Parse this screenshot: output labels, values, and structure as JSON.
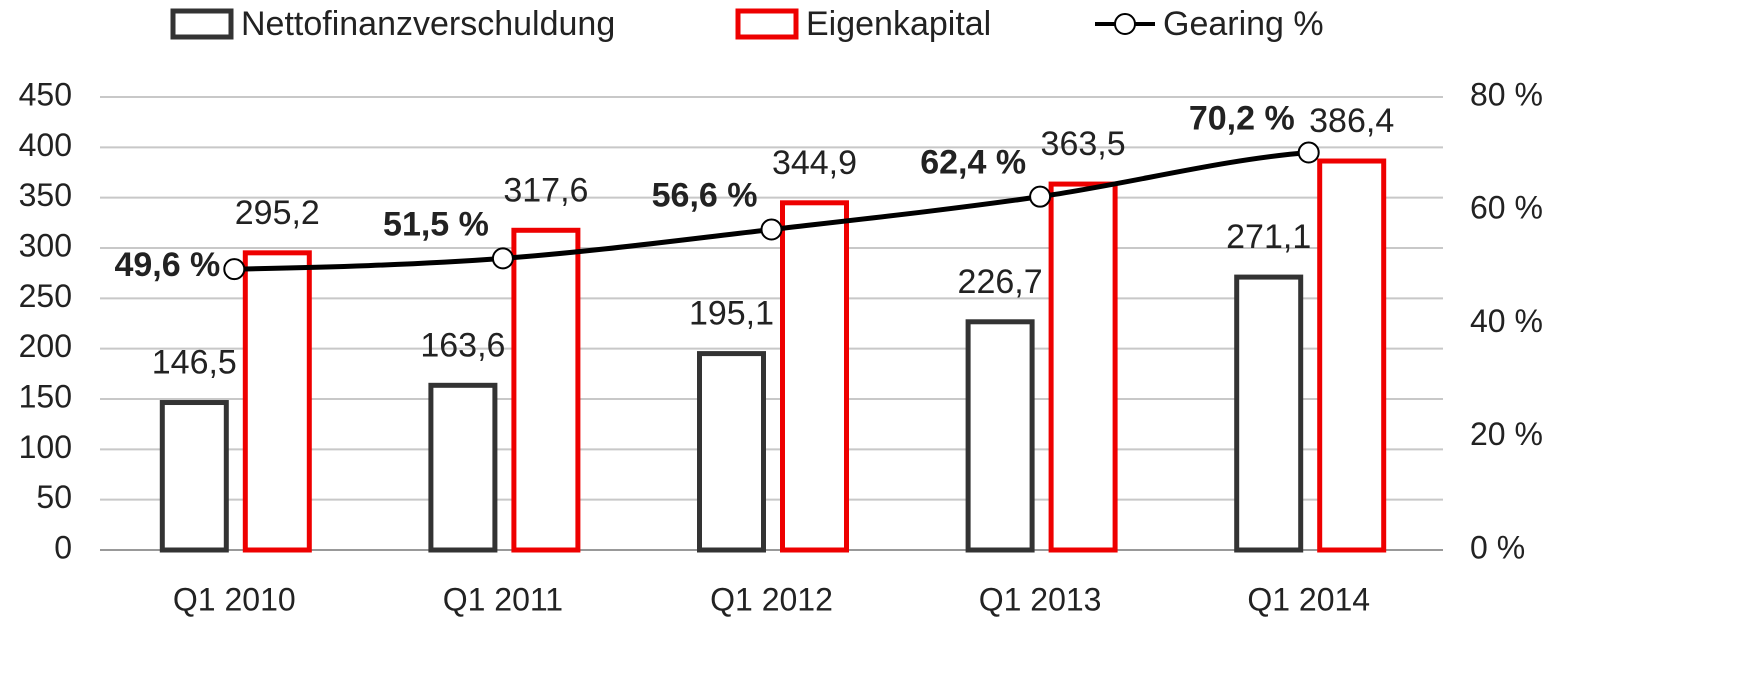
{
  "chart_data": {
    "type": "bar",
    "categories": [
      "Q1 2010",
      "Q1 2011",
      "Q1 2012",
      "Q1 2013",
      "Q1 2014"
    ],
    "series": [
      {
        "name": "Nettofinanzverschuldung",
        "color": "#333333",
        "values": [
          146.5,
          163.6,
          195.1,
          226.7,
          271.1
        ],
        "value_labels": [
          "146,5",
          "163,6",
          "195,1",
          "226,7",
          "271,1"
        ]
      },
      {
        "name": "Eigenkapital",
        "color": "#ee0000",
        "values": [
          295.2,
          317.6,
          344.9,
          363.5,
          386.4
        ],
        "value_labels": [
          "295,2",
          "317,6",
          "344,9",
          "363,5",
          "386,4"
        ]
      },
      {
        "name": "Gearing %",
        "type": "line",
        "axis": "y2",
        "color": "#000000",
        "values": [
          49.6,
          51.5,
          56.6,
          62.4,
          70.2
        ],
        "value_labels": [
          "49,6 %",
          "51,5 %",
          "56,6 %",
          "62,4 %",
          "70,2 %"
        ]
      }
    ],
    "ylim": [
      0,
      450
    ],
    "yticks": [
      0,
      50,
      100,
      150,
      200,
      250,
      300,
      350,
      400,
      450
    ],
    "y2lim": [
      0,
      80
    ],
    "y2ticks": [
      {
        "value": 0,
        "label": "0 %"
      },
      {
        "value": 20,
        "label": "20 %"
      },
      {
        "value": 40,
        "label": "40 %"
      },
      {
        "value": 60,
        "label": "60 %"
      },
      {
        "value": 80,
        "label": "80 %"
      }
    ],
    "grid": true,
    "legend": "top"
  }
}
